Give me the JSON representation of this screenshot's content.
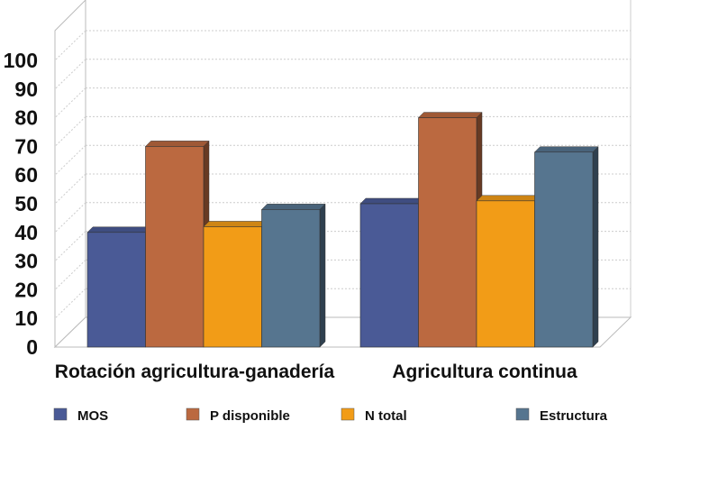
{
  "chart_data": {
    "type": "bar",
    "title": "",
    "xlabel": "",
    "ylabel": "",
    "ylim": [
      0,
      100
    ],
    "yticks": [
      0,
      10,
      20,
      30,
      40,
      50,
      60,
      70,
      80,
      90,
      100
    ],
    "grid": true,
    "legend_position": "bottom",
    "categories": [
      "Rotación agricultura-ganadería",
      "Agricultura continua"
    ],
    "series": [
      {
        "name": "MOS",
        "color": "#4a5a96",
        "values": [
          40,
          50
        ]
      },
      {
        "name": "P disponible",
        "color": "#bb6940",
        "values": [
          70,
          80
        ]
      },
      {
        "name": "N total",
        "color": "#f29c17",
        "values": [
          42,
          51
        ]
      },
      {
        "name": "Estructura",
        "color": "#56758f",
        "values": [
          48,
          68
        ]
      }
    ]
  }
}
